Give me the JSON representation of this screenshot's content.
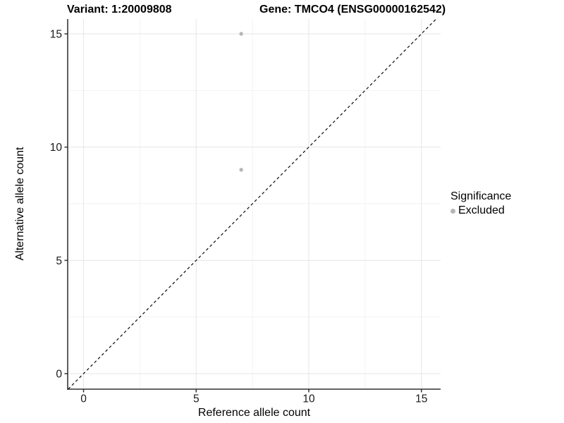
{
  "chart_data": {
    "type": "scatter",
    "title_left": "Variant: 1:20009808",
    "title_right": "Gene: TMCO4 (ENSG00000162542)",
    "xlabel": "Reference allele count",
    "ylabel": "Alternative allele count",
    "x_ticks": [
      0,
      5,
      10,
      15
    ],
    "y_ticks": [
      0,
      5,
      10,
      15
    ],
    "xlim": [
      -0.69,
      15.84
    ],
    "ylim": [
      -0.68,
      15.65
    ],
    "grid": {
      "major": true,
      "minor": true
    },
    "legend_position": "right",
    "legend": {
      "title": "Significance",
      "entries": [
        {
          "label": "Excluded",
          "color": "#b5b5b5"
        }
      ]
    },
    "series": [
      {
        "name": "Excluded",
        "color": "#b5b5b5",
        "points": [
          [
            7,
            15
          ],
          [
            7,
            9
          ]
        ]
      }
    ],
    "reference_line": {
      "kind": "identity y=x",
      "style": "dashed",
      "color": "#0a0a0a"
    }
  },
  "colors": {
    "background": "#ffffff",
    "grid_major": "#e6e6e6",
    "grid_minor": "#f2f2f2",
    "axis_line": "#4d4d4d",
    "tick_mark": "#333333",
    "tick_text": "#1a1a1a"
  }
}
